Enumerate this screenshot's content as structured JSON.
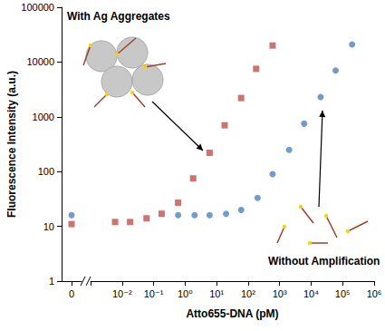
{
  "chart_data": {
    "type": "scatter",
    "x_label": "Atto655-DNA (pM)",
    "y_label": "Fluorescence Intensity (a.u.)",
    "log": true,
    "grid": false,
    "xlim": [
      0.001,
      1000000
    ],
    "xticks": [
      0,
      {
        "value": 0.01,
        "label": "10⁻²"
      },
      {
        "value": 0.1,
        "label": "10⁻¹"
      },
      {
        "value": 1,
        "label": "10⁰"
      },
      {
        "value": 10,
        "label": "10¹"
      },
      {
        "value": 100,
        "label": "10²"
      },
      {
        "value": 1000,
        "label": "10³"
      },
      {
        "value": 10000,
        "label": "10⁴"
      },
      {
        "value": 100000,
        "label": "10⁵"
      },
      {
        "value": 1000000,
        "label": "10⁶"
      }
    ],
    "ylim": [
      1,
      100000
    ],
    "yticks": [
      1,
      10,
      100,
      1000,
      10000,
      100000
    ],
    "series": [
      {
        "name": "With Ag Aggregates",
        "color": "#c0504d",
        "marker": "square",
        "x": [
          0,
          0.006,
          0.018,
          0.06,
          0.18,
          0.6,
          1.8,
          6,
          18,
          60,
          180,
          600
        ],
        "values": [
          11,
          12,
          12,
          14,
          17,
          27,
          75,
          220,
          700,
          2200,
          7500,
          20000
        ]
      },
      {
        "name": "Without Amplification",
        "color": "#4f81bd",
        "marker": "circle",
        "x": [
          0,
          0.6,
          2,
          6,
          20,
          60,
          200,
          600,
          2000,
          6000,
          20000,
          60000,
          200000
        ],
        "values": [
          16,
          16,
          16,
          16,
          17,
          20,
          33,
          90,
          250,
          750,
          2300,
          7000,
          21000
        ]
      }
    ]
  }
}
